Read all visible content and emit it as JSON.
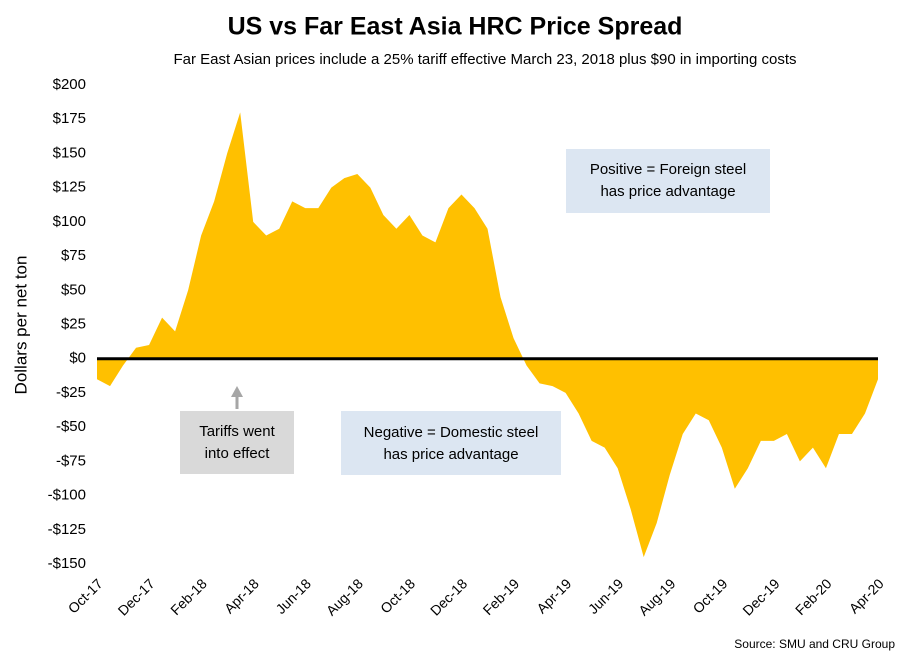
{
  "chart_data": {
    "type": "area",
    "title": "US vs Far East Asia HRC Price Spread",
    "subtitle": "Far East Asian prices include a 25% tariff effective March 23, 2018 plus $90 in importing costs",
    "y_label": "Dollars per net ton",
    "source": "Source: SMU and CRU Group",
    "color": "#FFC000",
    "categories": [
      "Oct-17",
      null,
      null,
      null,
      "Dec-17",
      null,
      null,
      null,
      "Feb-18",
      null,
      null,
      null,
      "Apr-18",
      null,
      null,
      null,
      "Jun-18",
      null,
      null,
      null,
      "Aug-18",
      null,
      null,
      null,
      "Oct-18",
      null,
      null,
      null,
      "Dec-18",
      null,
      null,
      null,
      "Feb-19",
      null,
      null,
      null,
      "Apr-19",
      null,
      null,
      null,
      "Jun-19",
      null,
      null,
      null,
      "Aug-19",
      null,
      null,
      null,
      "Oct-19",
      null,
      null,
      null,
      "Dec-19",
      null,
      null,
      null,
      "Feb-20",
      null,
      null,
      null,
      "Apr-20"
    ],
    "values": [
      -15,
      -20,
      -5,
      8,
      10,
      30,
      20,
      50,
      90,
      115,
      150,
      180,
      100,
      90,
      95,
      115,
      110,
      110,
      125,
      132,
      135,
      125,
      105,
      95,
      105,
      90,
      85,
      110,
      120,
      110,
      95,
      45,
      15,
      -5,
      -18,
      -20,
      -25,
      -40,
      -60,
      -65,
      -80,
      -110,
      -145,
      -120,
      -85,
      -55,
      -40,
      -45,
      -65,
      -95,
      -80,
      -60,
      -60,
      -55,
      -75,
      -65,
      -80,
      -55,
      -55,
      -40,
      -15
    ],
    "ylim": [
      -150,
      200
    ],
    "yticks": [
      {
        "value": -150,
        "label": "-$150"
      },
      {
        "value": -125,
        "label": "-$125"
      },
      {
        "value": -100,
        "label": "-$100"
      },
      {
        "value": -75,
        "label": "-$75"
      },
      {
        "value": -50,
        "label": "-$50"
      },
      {
        "value": -25,
        "label": "-$25"
      },
      {
        "value": 0,
        "label": "$0"
      },
      {
        "value": 25,
        "label": "$25"
      },
      {
        "value": 50,
        "label": "$50"
      },
      {
        "value": 75,
        "label": "$75"
      },
      {
        "value": 100,
        "label": "$100"
      },
      {
        "value": 125,
        "label": "$125"
      },
      {
        "value": 150,
        "label": "$150"
      },
      {
        "value": 175,
        "label": "$175"
      },
      {
        "value": 200,
        "label": "$200"
      }
    ],
    "grid": false,
    "annotations": [
      {
        "lines": [
          "Positive = Foreign steel",
          "has price advantage"
        ]
      },
      {
        "lines": [
          "Tariffs went",
          "into effect"
        ]
      },
      {
        "lines": [
          "Negative = Domestic steel",
          "has price advantage"
        ]
      }
    ]
  }
}
